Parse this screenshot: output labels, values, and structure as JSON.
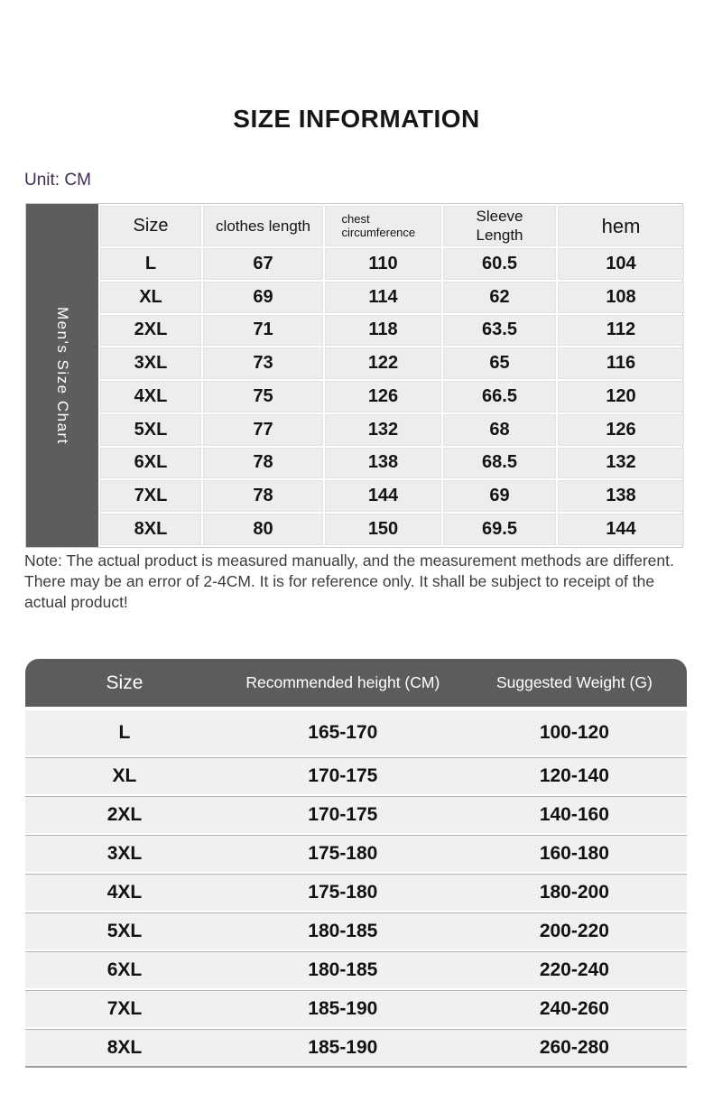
{
  "page": {
    "title": "SIZE INFORMATION",
    "unit_label": "Unit: CM",
    "note": "Note: The actual product is measured manually, and the measurement methods are different. There may be an error of 2-4CM. It is for reference only. It shall be subject to receipt of the actual product!"
  },
  "colors": {
    "dark_gray_header": "#5c5c5c",
    "side_label_bg": "#5d5d5d",
    "cell_bg_table1": "#ededed",
    "row_bg_table2": "#f0f0f0",
    "outer_border": "#c9c9c9",
    "row_separator": "#b3b3b3",
    "unit_label_text": "#3e2d52",
    "header_text_white": "#ffffff",
    "body_text": "#1c1c1c"
  },
  "chart_data": [
    {
      "type": "table",
      "title": "Men's Size Chart",
      "unit": "CM",
      "columns": [
        "Size",
        "clothes length",
        "chest circumference",
        "Sleeve Length",
        "hem"
      ],
      "rows": [
        [
          "L",
          "67",
          "110",
          "60.5",
          "104"
        ],
        [
          "XL",
          "69",
          "114",
          "62",
          "108"
        ],
        [
          "2XL",
          "71",
          "118",
          "63.5",
          "112"
        ],
        [
          "3XL",
          "73",
          "122",
          "65",
          "116"
        ],
        [
          "4XL",
          "75",
          "126",
          "66.5",
          "120"
        ],
        [
          "5XL",
          "77",
          "132",
          "68",
          "126"
        ],
        [
          "6XL",
          "78",
          "138",
          "68.5",
          "132"
        ],
        [
          "7XL",
          "78",
          "144",
          "69",
          "138"
        ],
        [
          "8XL",
          "80",
          "150",
          "69.5",
          "144"
        ]
      ]
    },
    {
      "type": "table",
      "columns": [
        "Size",
        "Recommended height (CM)",
        "Suggested Weight (G)"
      ],
      "rows": [
        [
          "L",
          "165-170",
          "100-120"
        ],
        [
          "XL",
          "170-175",
          "120-140"
        ],
        [
          "2XL",
          "170-175",
          "140-160"
        ],
        [
          "3XL",
          "175-180",
          "160-180"
        ],
        [
          "4XL",
          "175-180",
          "180-200"
        ],
        [
          "5XL",
          "180-185",
          "200-220"
        ],
        [
          "6XL",
          "180-185",
          "220-240"
        ],
        [
          "7XL",
          "185-190",
          "240-260"
        ],
        [
          "8XL",
          "185-190",
          "260-280"
        ]
      ]
    }
  ]
}
